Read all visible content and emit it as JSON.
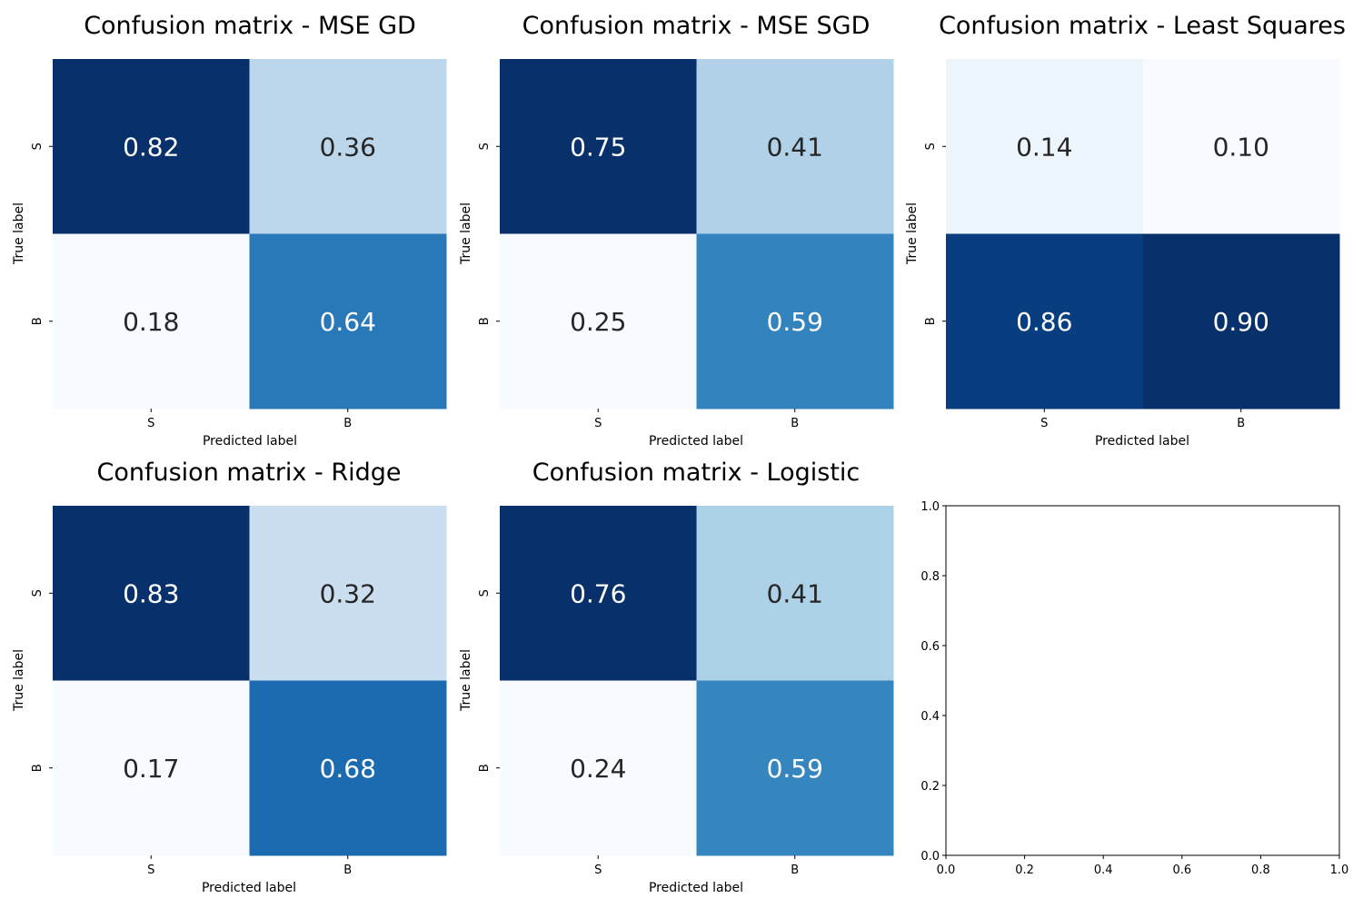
{
  "figure": {
    "colormap": "Blues",
    "cmap_stops": [
      "#f7fbff",
      "#deebf7",
      "#c6dbef",
      "#9ecae1",
      "#6baed6",
      "#4292c6",
      "#2171b5",
      "#08519c",
      "#08306b"
    ],
    "text_colors": {
      "dark": "#262626",
      "light": "#ffffff"
    }
  },
  "chart_data": [
    {
      "type": "heatmap",
      "title": "Confusion matrix - MSE GD",
      "xlabel": "Predicted label",
      "ylabel": "True label",
      "x_categories": [
        "S",
        "B"
      ],
      "y_categories": [
        "S",
        "B"
      ],
      "values": [
        [
          0.82,
          0.36
        ],
        [
          0.18,
          0.64
        ]
      ],
      "value_labels": [
        [
          "0.82",
          "0.36"
        ],
        [
          "0.18",
          "0.64"
        ]
      ],
      "colorbar": false
    },
    {
      "type": "heatmap",
      "title": "Confusion matrix - MSE SGD",
      "xlabel": "Predicted label",
      "ylabel": "True label",
      "x_categories": [
        "S",
        "B"
      ],
      "y_categories": [
        "S",
        "B"
      ],
      "values": [
        [
          0.75,
          0.41
        ],
        [
          0.25,
          0.59
        ]
      ],
      "value_labels": [
        [
          "0.75",
          "0.41"
        ],
        [
          "0.25",
          "0.59"
        ]
      ],
      "colorbar": false
    },
    {
      "type": "heatmap",
      "title": "Confusion matrix - Least Squares",
      "xlabel": "Predicted label",
      "ylabel": "True label",
      "x_categories": [
        "S",
        "B"
      ],
      "y_categories": [
        "S",
        "B"
      ],
      "values": [
        [
          0.14,
          0.1
        ],
        [
          0.86,
          0.9
        ]
      ],
      "value_labels": [
        [
          "0.14",
          "0.10"
        ],
        [
          "0.86",
          "0.90"
        ]
      ],
      "colorbar": false
    },
    {
      "type": "heatmap",
      "title": "Confusion matrix - Ridge",
      "xlabel": "Predicted label",
      "ylabel": "True label",
      "x_categories": [
        "S",
        "B"
      ],
      "y_categories": [
        "S",
        "B"
      ],
      "values": [
        [
          0.83,
          0.32
        ],
        [
          0.17,
          0.68
        ]
      ],
      "value_labels": [
        [
          "0.83",
          "0.32"
        ],
        [
          "0.17",
          "0.68"
        ]
      ],
      "colorbar": false
    },
    {
      "type": "heatmap",
      "title": "Confusion matrix - Logistic",
      "xlabel": "Predicted label",
      "ylabel": "True label",
      "x_categories": [
        "S",
        "B"
      ],
      "y_categories": [
        "S",
        "B"
      ],
      "values": [
        [
          0.76,
          0.41
        ],
        [
          0.24,
          0.59
        ]
      ],
      "value_labels": [
        [
          "0.76",
          "0.41"
        ],
        [
          "0.24",
          "0.59"
        ]
      ],
      "colorbar": false
    },
    {
      "type": "line",
      "title": "",
      "xlabel": "",
      "ylabel": "",
      "series": [],
      "xlim": [
        0.0,
        1.0
      ],
      "ylim": [
        0.0,
        1.0
      ],
      "xticks": [
        "0.0",
        "0.2",
        "0.4",
        "0.6",
        "0.8",
        "1.0"
      ],
      "yticks": [
        "0.0",
        "0.2",
        "0.4",
        "0.6",
        "0.8",
        "1.0"
      ],
      "grid": false
    }
  ]
}
